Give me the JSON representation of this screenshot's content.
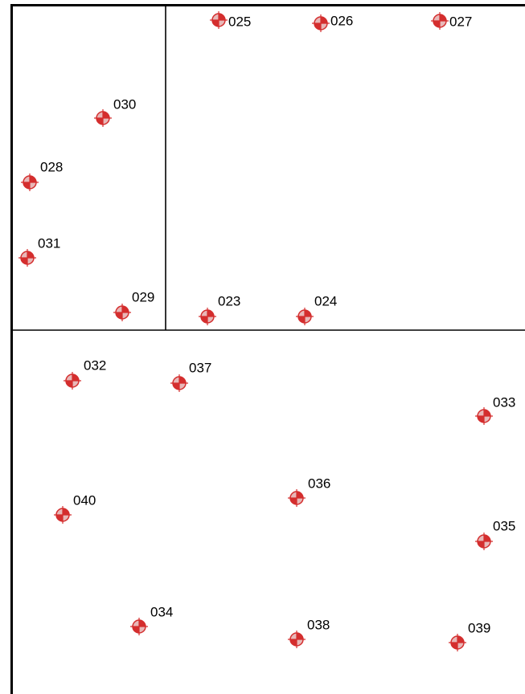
{
  "colors": {
    "background": "#ffffff",
    "frame": "#000000",
    "marker_fill": "#d42e2e",
    "marker_light": "#e8b8b8"
  },
  "marker_icon": "control-point-target-icon",
  "points": [
    {
      "id": "025",
      "label": "025"
    },
    {
      "id": "026",
      "label": "026"
    },
    {
      "id": "027",
      "label": "027"
    },
    {
      "id": "030",
      "label": "030"
    },
    {
      "id": "028",
      "label": "028"
    },
    {
      "id": "031",
      "label": "031"
    },
    {
      "id": "029",
      "label": "029"
    },
    {
      "id": "023",
      "label": "023"
    },
    {
      "id": "024",
      "label": "024"
    },
    {
      "id": "032",
      "label": "032"
    },
    {
      "id": "037",
      "label": "037"
    },
    {
      "id": "033",
      "label": "033"
    },
    {
      "id": "036",
      "label": "036"
    },
    {
      "id": "040",
      "label": "040"
    },
    {
      "id": "035",
      "label": "035"
    },
    {
      "id": "034",
      "label": "034"
    },
    {
      "id": "038",
      "label": "038"
    },
    {
      "id": "039",
      "label": "039"
    }
  ]
}
